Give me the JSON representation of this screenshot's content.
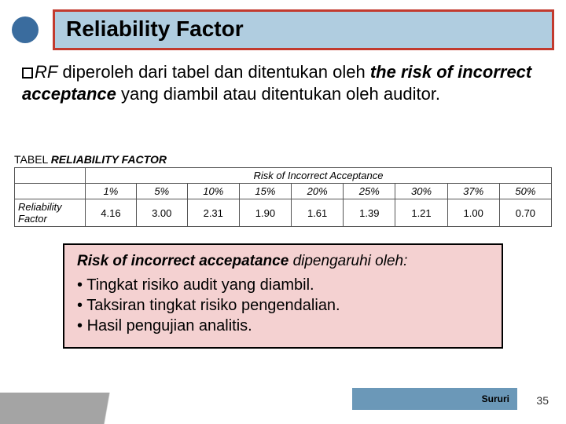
{
  "header": {
    "title": "Reliability Factor",
    "bullet_color": "#3a6c9e",
    "box_border_color": "#c23a2e",
    "box_bg_color": "#b0cde0"
  },
  "body": {
    "prefix_italic": "RF",
    "text_1": " diperoleh dari tabel dan ditentukan oleh ",
    "bold_phrase": "the risk of incorrect acceptance",
    "text_2": " yang diambil atau ditentukan oleh auditor."
  },
  "table": {
    "caption_prefix": "TABEL ",
    "caption_bold": "RELIABILITY FACTOR",
    "risk_header": "Risk of Incorrect Acceptance",
    "row_label": "Reliability Factor",
    "columns": [
      "1%",
      "5%",
      "10%",
      "15%",
      "20%",
      "25%",
      "30%",
      "37%",
      "50%"
    ],
    "values": [
      "4.16",
      "3.00",
      "2.31",
      "1.90",
      "1.61",
      "1.39",
      "1.21",
      "1.00",
      "0.70"
    ]
  },
  "infobox": {
    "bg_color": "#f4d1d1",
    "heading_bold": "Risk of incorrect accepatance",
    "heading_rest": " dipengaruhi oleh:",
    "items": [
      "Tingkat risiko audit yang diambil.",
      "Taksiran tingkat risiko pengendalian.",
      "Hasil pengujian analitis."
    ]
  },
  "footer": {
    "author": "Sururi",
    "bar_color": "#6b98b8",
    "page": "35"
  }
}
